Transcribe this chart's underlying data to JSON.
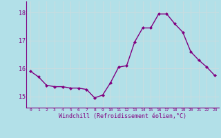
{
  "x": [
    0,
    1,
    2,
    3,
    4,
    5,
    6,
    7,
    8,
    9,
    10,
    11,
    12,
    13,
    14,
    15,
    16,
    17,
    18,
    19,
    20,
    21,
    22,
    23
  ],
  "y": [
    15.9,
    15.7,
    15.4,
    15.35,
    15.35,
    15.3,
    15.3,
    15.25,
    14.95,
    15.05,
    15.5,
    16.05,
    16.1,
    16.95,
    17.45,
    17.45,
    17.95,
    17.95,
    17.6,
    17.3,
    16.6,
    16.3,
    16.05,
    15.75
  ],
  "line_color": "#800080",
  "marker": "D",
  "marker_size": 2.0,
  "bg_color": "#b2e0e8",
  "grid_color": "#c8dde0",
  "xlabel": "Windchill (Refroidissement éolien,°C)",
  "xlabel_color": "#800080",
  "tick_color": "#800080",
  "ylim": [
    14.6,
    18.4
  ],
  "xlim": [
    -0.5,
    23.5
  ],
  "yticks": [
    15,
    16,
    17,
    18
  ],
  "xtick_labels": [
    "0",
    "1",
    "2",
    "3",
    "4",
    "5",
    "6",
    "7",
    "8",
    "9",
    "10",
    "11",
    "12",
    "13",
    "14",
    "15",
    "16",
    "17",
    "18",
    "19",
    "20",
    "21",
    "22",
    "23"
  ],
  "linewidth": 1.0,
  "marker_color": "#800080",
  "spine_color": "#800080"
}
